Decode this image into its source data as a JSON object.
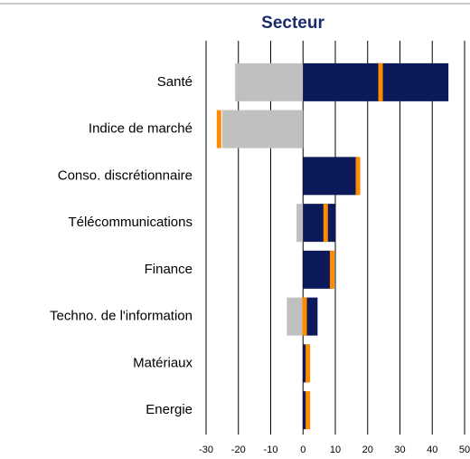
{
  "chart_data": {
    "type": "bar",
    "orientation": "horizontal",
    "title": "Secteur",
    "categories": [
      "Santé",
      "Indice de marché",
      "Conso. discrétionnaire",
      "Télécommunications",
      "Finance",
      "Techno. de l'information",
      "Matériaux",
      "Energie"
    ],
    "series": [
      {
        "color": "#c0c0c0",
        "values": [
          -21,
          -25,
          null,
          -2,
          null,
          -5,
          null,
          null
        ]
      },
      {
        "color": "#0c1a5c",
        "values": [
          45,
          null,
          17,
          10,
          9,
          4.5,
          2,
          1
        ]
      },
      {
        "color": "#ff8c00",
        "style": "marker",
        "values": [
          24,
          -26,
          17,
          7,
          9,
          0.5,
          1.5,
          1.5
        ]
      }
    ],
    "xlim": [
      -30,
      50
    ],
    "xticks": [
      -30,
      -20,
      -10,
      0,
      10,
      20,
      30,
      40,
      50
    ],
    "grid": true
  }
}
